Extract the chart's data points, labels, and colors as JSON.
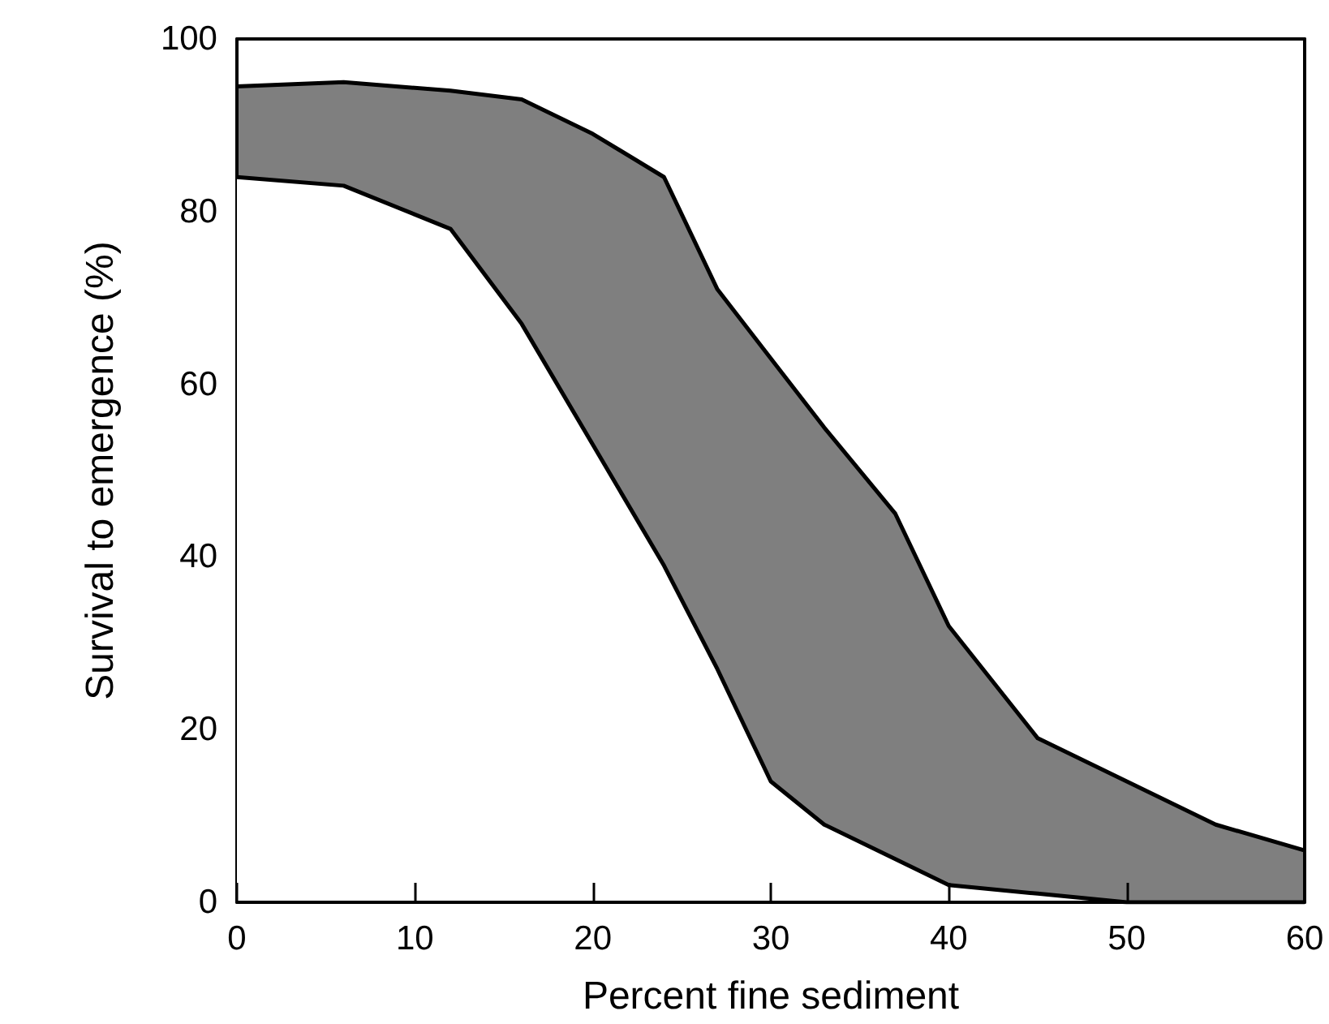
{
  "chart_data": {
    "type": "area",
    "xlabel": "Percent fine sediment",
    "ylabel": "Survival to emergence (%)",
    "x": [
      0,
      6,
      12,
      16,
      20,
      24,
      27,
      30,
      33,
      37,
      40,
      45,
      50,
      55,
      60
    ],
    "series": [
      {
        "color": "#000000",
        "values": [
          94.5,
          95,
          94,
          93,
          89,
          84,
          71,
          63,
          55,
          45,
          32,
          19,
          14,
          9,
          6
        ]
      },
      {
        "color": "#000000",
        "values": [
          84,
          83,
          78,
          67,
          53,
          39,
          27,
          14,
          9,
          5,
          2,
          1,
          0,
          0,
          0
        ]
      }
    ],
    "xlim": [
      0,
      60
    ],
    "xticks": [
      0,
      10,
      20,
      30,
      40,
      50,
      60
    ],
    "ylim": [
      0,
      100
    ],
    "yticks": [
      0,
      20,
      40,
      60,
      80,
      100
    ]
  }
}
